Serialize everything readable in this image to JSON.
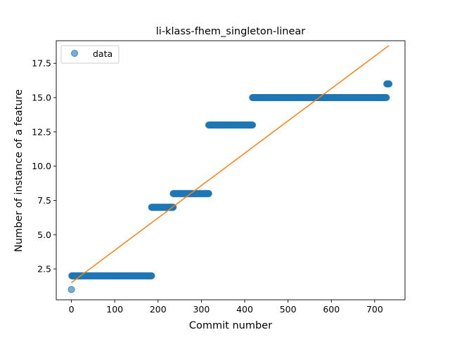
{
  "chart_data": {
    "type": "scatter",
    "title": "li-klass-fhem_singleton-linear",
    "xlabel": "Commit number",
    "ylabel": "Number of instance of a feature",
    "xlim": [
      -35,
      770
    ],
    "ylim": [
      0.25,
      19.15
    ],
    "xticks": [
      0,
      100,
      200,
      300,
      400,
      500,
      600,
      700
    ],
    "yticks": [
      2.5,
      5.0,
      7.5,
      10.0,
      12.5,
      15.0,
      17.5
    ],
    "legend": {
      "placement": "top-left",
      "entries": [
        "data"
      ]
    },
    "grid": false,
    "colors": {
      "data": "#1f77b4",
      "fit": "#ff7f0e"
    },
    "series": [
      {
        "name": "data",
        "kind": "scatter",
        "points": [
          [
            0,
            1
          ]
        ],
        "runs": [
          {
            "x_start": 1,
            "x_end": 185,
            "y": 2
          },
          {
            "x_start": 185,
            "x_end": 235,
            "y": 7
          },
          {
            "x_start": 235,
            "x_end": 317,
            "y": 8
          },
          {
            "x_start": 317,
            "x_end": 418,
            "y": 13
          },
          {
            "x_start": 418,
            "x_end": 727,
            "y": 15
          },
          {
            "x_start": 728,
            "x_end": 733,
            "y": 16
          }
        ]
      },
      {
        "kind": "line",
        "x": [
          0,
          733
        ],
        "y": [
          1.5,
          18.8
        ]
      }
    ]
  }
}
